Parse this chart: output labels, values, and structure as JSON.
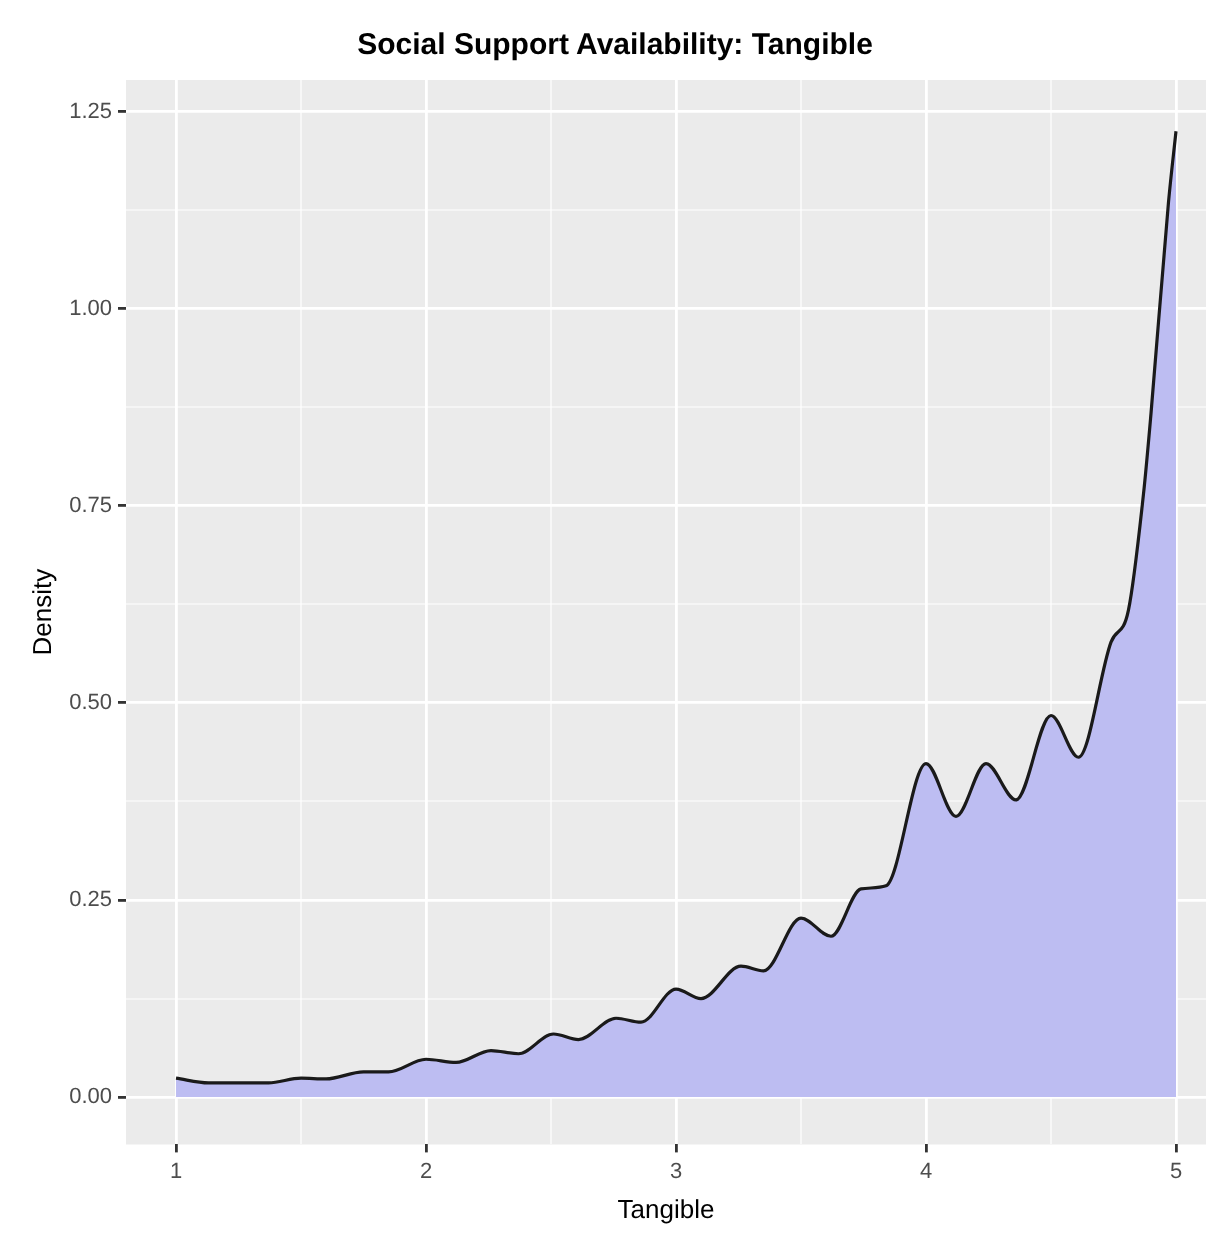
{
  "chart_data": {
    "type": "area",
    "title": "Social Support Availability: Tangible",
    "xlabel": "Tangible",
    "ylabel": "Density",
    "x": [
      1.0,
      1.13,
      1.25,
      1.37,
      1.5,
      1.6,
      1.75,
      1.85,
      2.0,
      2.12,
      2.26,
      2.37,
      2.51,
      2.61,
      2.76,
      2.86,
      3.0,
      3.1,
      3.26,
      3.35,
      3.5,
      3.62,
      3.74,
      3.84,
      4.0,
      4.12,
      4.24,
      4.36,
      4.5,
      4.61,
      4.74,
      4.81,
      4.87,
      4.9,
      4.97,
      5.0
    ],
    "series": [
      {
        "color": "#bdbdf2",
        "values": [
          0.024,
          0.018,
          0.018,
          0.018,
          0.024,
          0.023,
          0.032,
          0.032,
          0.048,
          0.044,
          0.059,
          0.055,
          0.08,
          0.073,
          0.1,
          0.095,
          0.137,
          0.125,
          0.166,
          0.16,
          0.227,
          0.204,
          0.264,
          0.268,
          0.423,
          0.356,
          0.423,
          0.377,
          0.484,
          0.431,
          0.577,
          0.618,
          0.765,
          0.867,
          1.135,
          1.225
        ]
      }
    ],
    "xlim": [
      0.8,
      5.12
    ],
    "ylim": [
      -0.06,
      1.29
    ],
    "xticks": [
      1,
      2,
      3,
      4,
      5
    ],
    "yticks": [
      {
        "value": 0,
        "label": "0.00"
      },
      {
        "value": 0.25,
        "label": "0.25"
      },
      {
        "value": 0.5,
        "label": "0.50"
      },
      {
        "value": 0.75,
        "label": "0.75"
      },
      {
        "value": 1,
        "label": "1.00"
      },
      {
        "value": 1.25,
        "label": "1.25"
      }
    ],
    "grid": true,
    "legend": false
  }
}
